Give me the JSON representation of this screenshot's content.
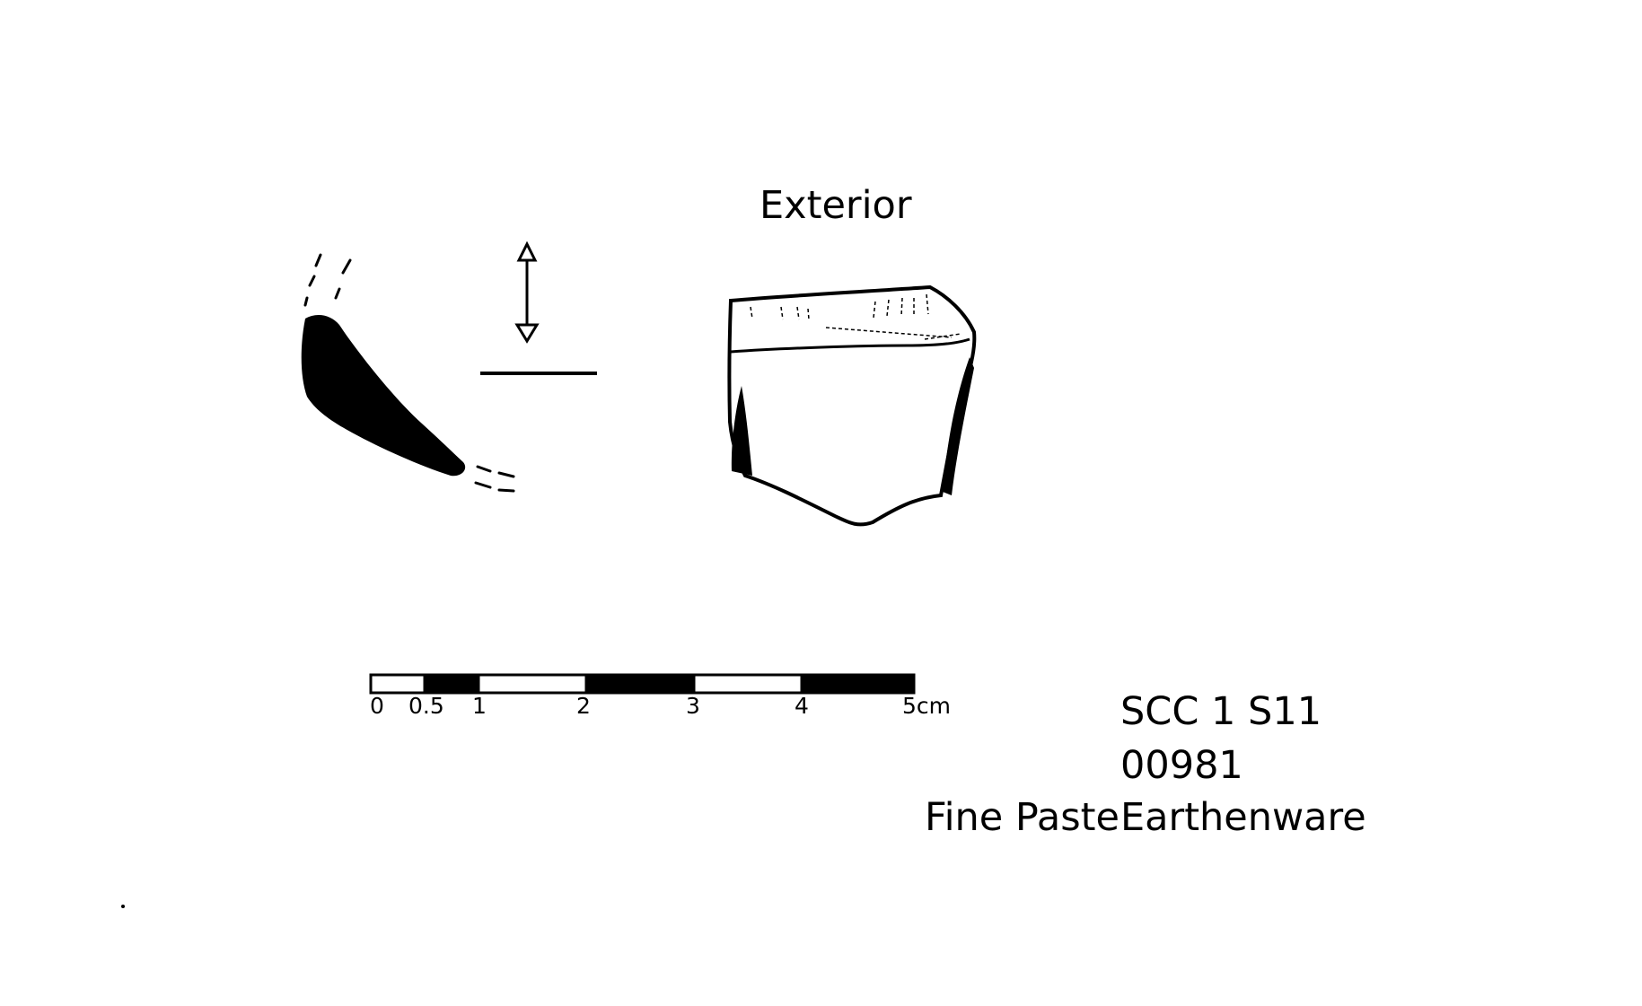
{
  "figure": {
    "view_label": "Exterior",
    "scale": {
      "ticks": [
        "0",
        "0.5",
        "1",
        "2",
        "3",
        "4",
        "5cm"
      ]
    },
    "catalog": {
      "site": "SCC 1 S11",
      "number": "00981",
      "ware_prefix": "Fine Paste",
      "ware": "Earthenware"
    }
  }
}
